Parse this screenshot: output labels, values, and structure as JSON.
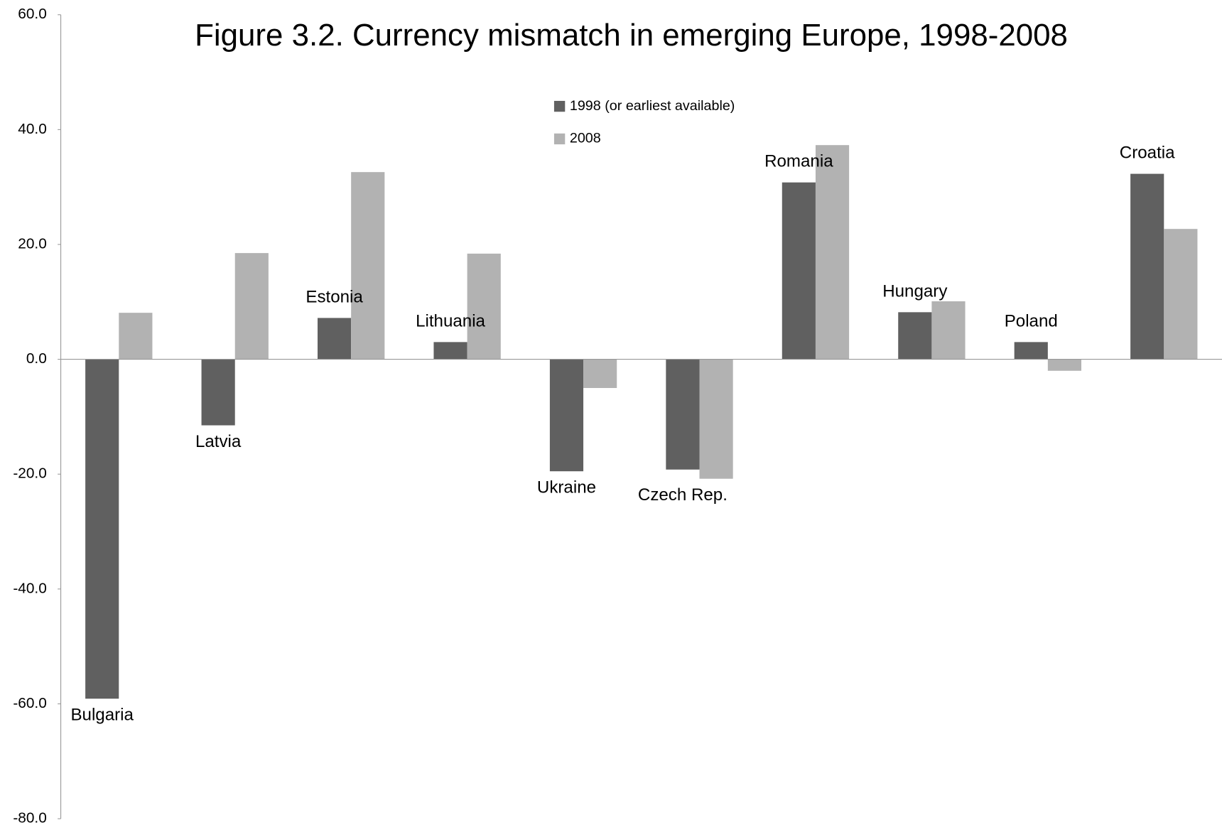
{
  "chart_data": {
    "type": "bar",
    "title": "Figure 3.2. Currency mismatch in emerging Europe, 1998-2008",
    "categories": [
      "Bulgaria",
      "Latvia",
      "Estonia",
      "Lithuania",
      "Ukraine",
      "Czech Rep.",
      "Romania",
      "Hungary",
      "Poland",
      "Croatia"
    ],
    "series": [
      {
        "name": "1998 (or earliest available)",
        "color": "#606060",
        "values": [
          -59.1,
          -11.5,
          7.2,
          3.0,
          -19.5,
          -19.2,
          30.8,
          8.2,
          3.0,
          32.3
        ]
      },
      {
        "name": "2008",
        "color": "#b2b2b2",
        "values": [
          8.1,
          18.5,
          32.6,
          18.4,
          -5.0,
          -20.8,
          37.3,
          10.1,
          -2.0,
          22.7
        ]
      }
    ],
    "ylim": [
      -80,
      60
    ],
    "yticks": [
      {
        "value": -80,
        "label": "-80.0"
      },
      {
        "value": -60,
        "label": "-60.0"
      },
      {
        "value": -40,
        "label": "-40.0"
      },
      {
        "value": -20,
        "label": "-20.0"
      },
      {
        "value": 0,
        "label": "0.0"
      },
      {
        "value": 20,
        "label": "20.0"
      },
      {
        "value": 40,
        "label": "40.0"
      },
      {
        "value": 60,
        "label": "60.0"
      }
    ],
    "grid": false
  }
}
